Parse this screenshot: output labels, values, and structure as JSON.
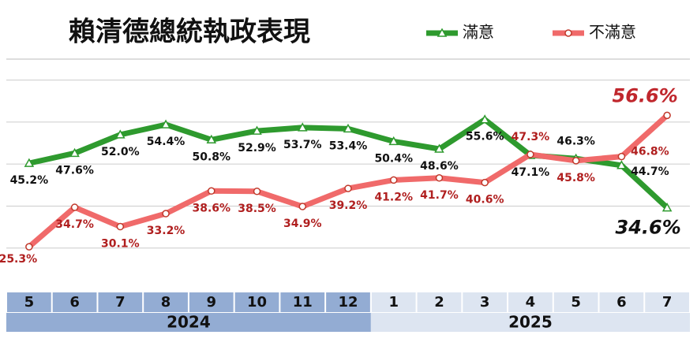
{
  "chart_data": {
    "type": "line",
    "title": "賴清德總統執政表現",
    "groups": [
      {
        "name": "2024",
        "categories": [
          "5",
          "6",
          "7",
          "8",
          "9",
          "10",
          "11",
          "12"
        ]
      },
      {
        "name": "2025",
        "categories": [
          "1",
          "2",
          "3",
          "4",
          "5",
          "6",
          "7"
        ]
      }
    ],
    "series": [
      {
        "name": "滿意",
        "color": "#2e9a2e",
        "marker": "triangle",
        "values": [
          45.2,
          47.6,
          52.0,
          54.4,
          50.8,
          52.9,
          53.7,
          53.4,
          50.4,
          48.6,
          55.6,
          47.1,
          46.3,
          44.7,
          34.6
        ],
        "value_labels": [
          "45.2%",
          "47.6%",
          "52.0%",
          "54.4%",
          "50.8%",
          "52.9%",
          "53.7%",
          "53.4%",
          "50.4%",
          "48.6%",
          "55.6%",
          "47.1%",
          "46.3%",
          "44.7%",
          "34.6%"
        ]
      },
      {
        "name": "不滿意",
        "color": "#f06a6a",
        "marker": "circle",
        "values": [
          25.3,
          34.7,
          30.1,
          33.2,
          38.6,
          38.5,
          34.9,
          39.2,
          41.2,
          41.7,
          40.6,
          47.3,
          45.8,
          46.8,
          56.6
        ],
        "value_labels": [
          "25.3%",
          "34.7%",
          "30.1%",
          "33.2%",
          "38.6%",
          "38.5%",
          "34.9%",
          "39.2%",
          "41.2%",
          "41.7%",
          "40.6%",
          "47.3%",
          "45.8%",
          "46.8%",
          "56.6%"
        ]
      }
    ],
    "ylim": [
      15,
      70
    ],
    "ygrid": [
      25,
      35,
      45,
      55,
      65
    ],
    "grid": true,
    "legend": "top-right"
  }
}
